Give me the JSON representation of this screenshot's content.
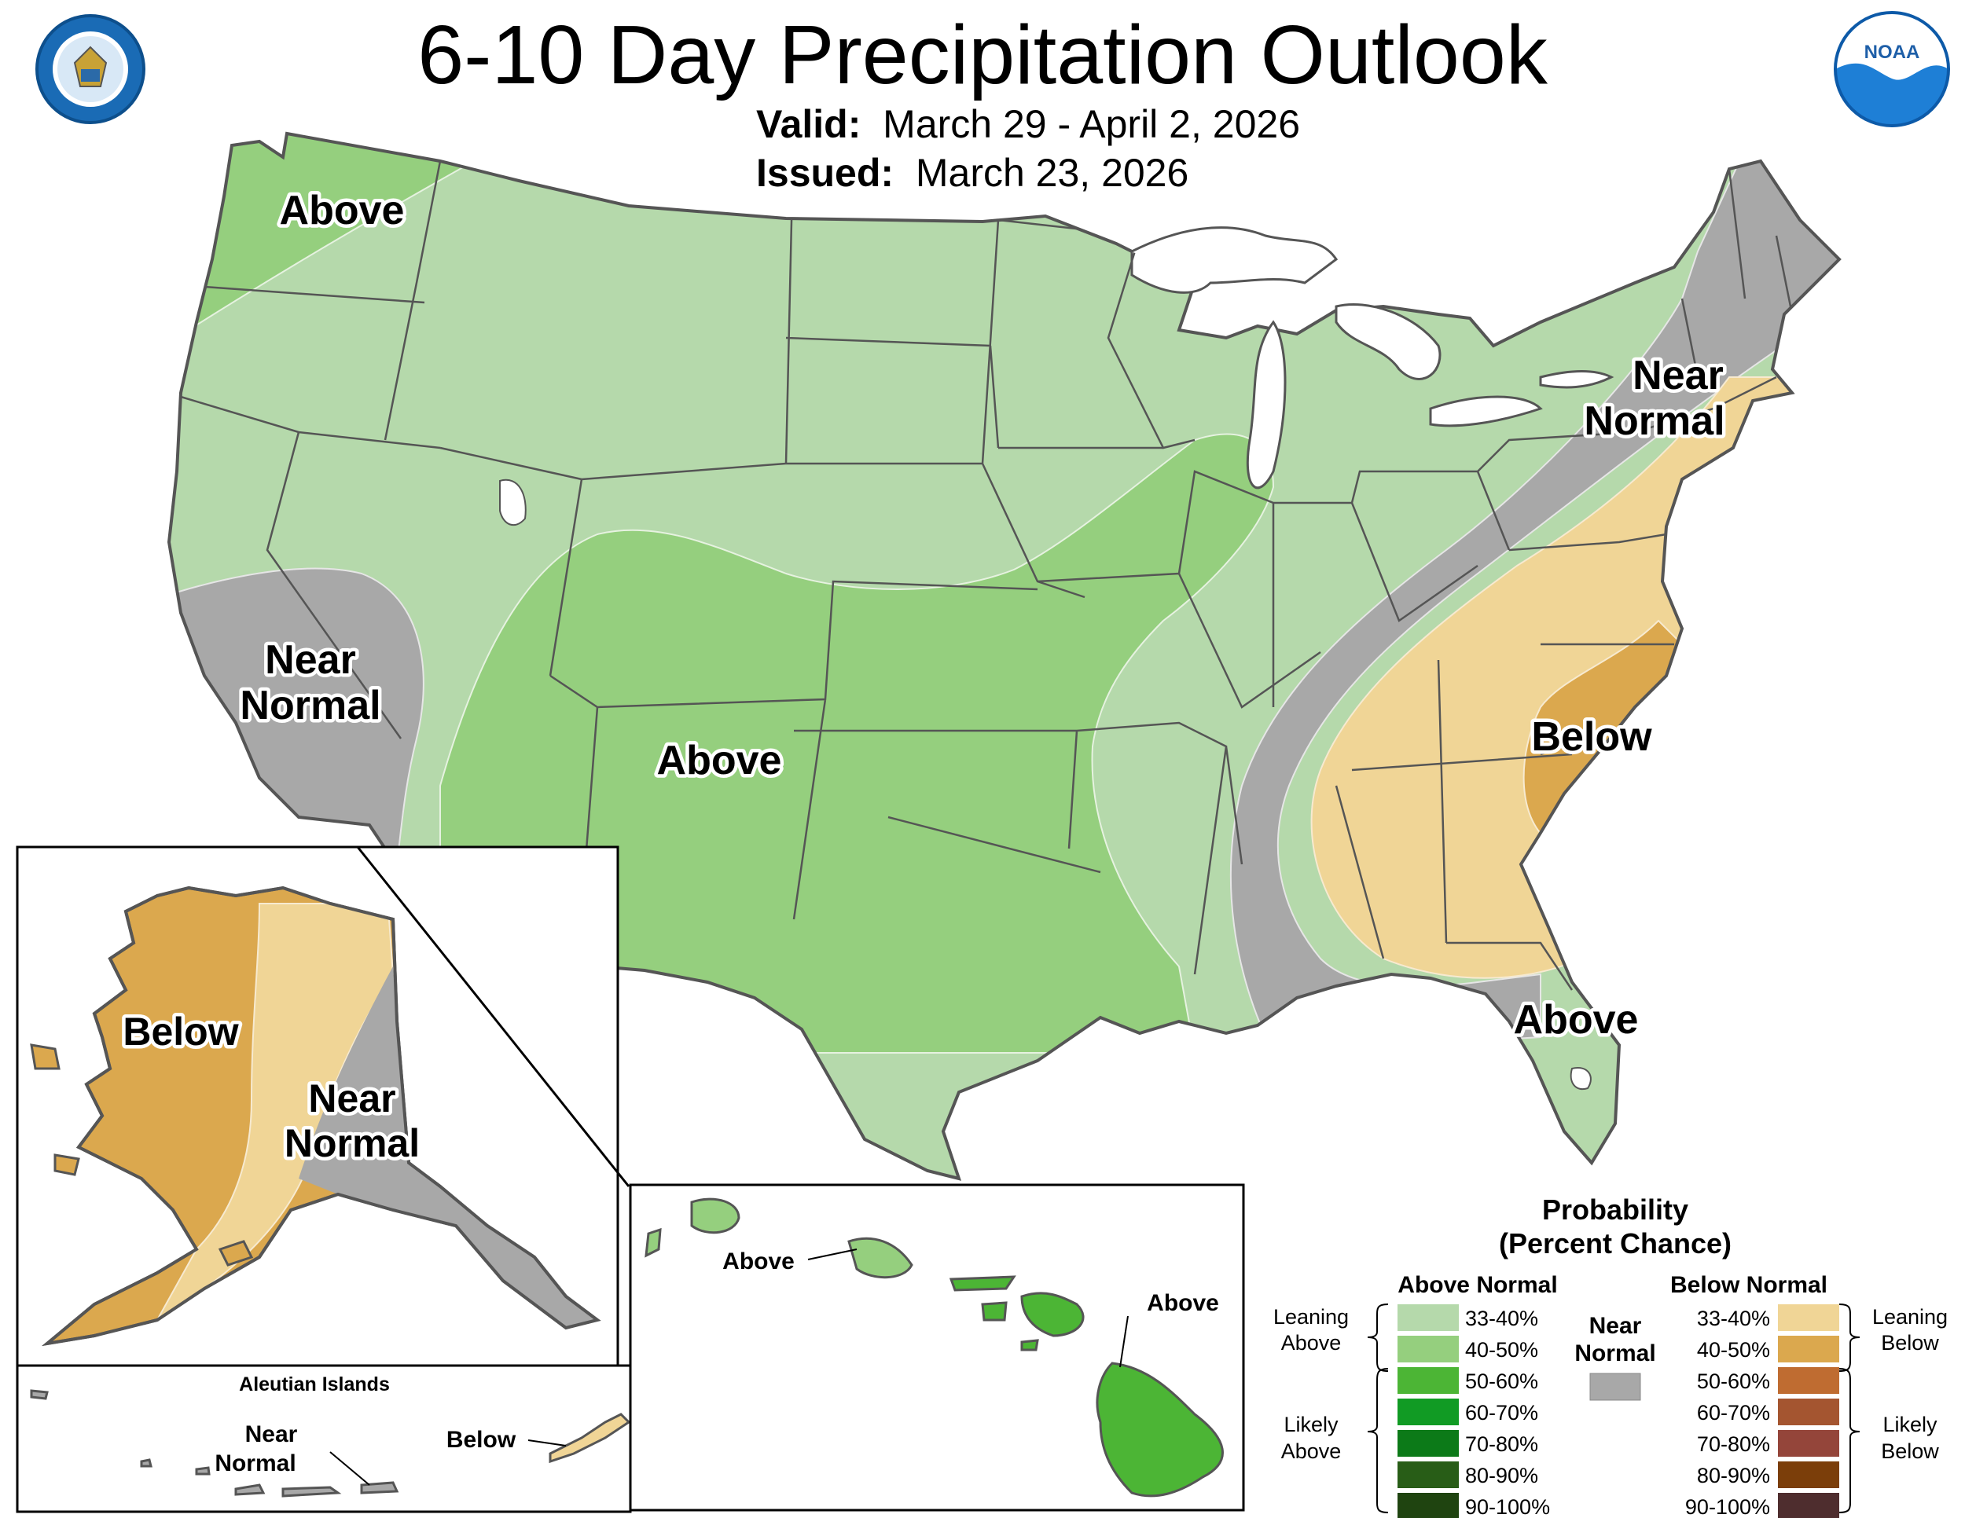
{
  "header": {
    "title": "6-10 Day Precipitation Outlook",
    "valid_label": "Valid:",
    "valid_value": "March 29 - April 2, 2026",
    "issued_label": "Issued:",
    "issued_value": "March 23, 2026",
    "left_logo": "department-of-commerce-seal",
    "right_logo": "noaa-logo",
    "noaa_text": "NOAA"
  },
  "regions": {
    "pacific_northwest": "Above",
    "southwest_california_l1": "Near",
    "southwest_california_l2": "Normal",
    "central_plains": "Above",
    "northeast_l1": "Near",
    "northeast_l2": "Normal",
    "southeast": "Below",
    "florida": "Above",
    "alaska_west": "Below",
    "alaska_east_l1": "Near",
    "alaska_east_l2": "Normal",
    "aleutians_title": "Aleutian Islands",
    "aleutians_near_l1": "Near",
    "aleutians_near_l2": "Normal",
    "aleutians_below": "Below",
    "hawaii_west": "Above",
    "hawaii_east": "Above"
  },
  "legend": {
    "title_l1": "Probability",
    "title_l2": "(Percent Chance)",
    "above_header": "Above Normal",
    "below_header": "Below Normal",
    "near_l1": "Near",
    "near_l2": "Normal",
    "near_color": "#a8a8a8",
    "leaning_above_l1": "Leaning",
    "leaning_above_l2": "Above",
    "likely_above_l1": "Likely",
    "likely_above_l2": "Above",
    "leaning_below_l1": "Leaning",
    "leaning_below_l2": "Below",
    "likely_below_l1": "Likely",
    "likely_below_l2": "Below",
    "above_items": [
      {
        "range": "33-40%",
        "color": "#b5d9ab"
      },
      {
        "range": "40-50%",
        "color": "#95cf7e"
      },
      {
        "range": "50-60%",
        "color": "#4cb535"
      },
      {
        "range": "60-70%",
        "color": "#119b24"
      },
      {
        "range": "70-80%",
        "color": "#0c7a18"
      },
      {
        "range": "80-90%",
        "color": "#285d17"
      },
      {
        "range": "90-100%",
        "color": "#1f4410"
      }
    ],
    "below_items": [
      {
        "range": "33-40%",
        "color": "#f0d596"
      },
      {
        "range": "40-50%",
        "color": "#dba84e"
      },
      {
        "range": "50-60%",
        "color": "#bf6c31"
      },
      {
        "range": "60-70%",
        "color": "#a45530"
      },
      {
        "range": "70-80%",
        "color": "#94453a"
      },
      {
        "range": "80-90%",
        "color": "#7b3e0a"
      },
      {
        "range": "90-100%",
        "color": "#4e2d2e"
      }
    ]
  }
}
